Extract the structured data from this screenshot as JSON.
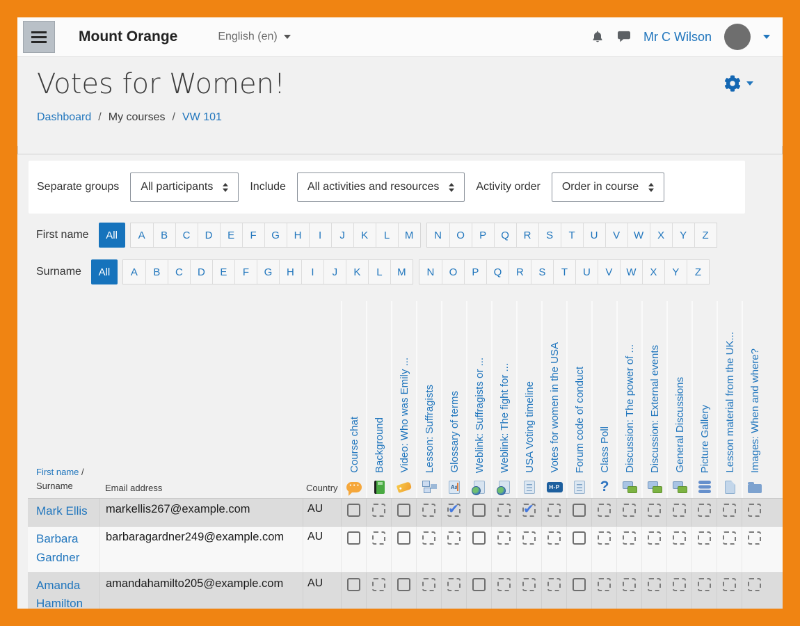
{
  "colors": {
    "frame_orange": "#f08412",
    "accent_blue": "#2176bd",
    "selected_filter_bg": "#1673bc",
    "checked_blue": "#4579de"
  },
  "navbar": {
    "brand": "Mount Orange",
    "language": "English (en)",
    "user_name": "Mr C Wilson"
  },
  "header": {
    "title": "Votes for Women!",
    "separator": "/",
    "breadcrumb": [
      {
        "label": "Dashboard"
      },
      {
        "label": "My courses"
      },
      {
        "label": "VW 101"
      }
    ]
  },
  "filters": {
    "groups_label": "Separate groups",
    "groups_value": "All participants",
    "include_label": "Include",
    "include_value": "All activities and resources",
    "order_label": "Activity order",
    "order_value": "Order in course"
  },
  "letter_filters": {
    "first_name_label": "First name",
    "surname_label": "Surname",
    "all_label": "All",
    "letters_group1": [
      "A",
      "B",
      "C",
      "D",
      "E",
      "F",
      "G",
      "H",
      "I",
      "J",
      "K",
      "L",
      "M"
    ],
    "letters_group2": [
      "N",
      "O",
      "P",
      "Q",
      "R",
      "S",
      "T",
      "U",
      "V",
      "W",
      "X",
      "Y",
      "Z"
    ]
  },
  "table": {
    "first_name_sort_label": "First name",
    "name_header_sep": " / ",
    "surname_sort_label": "Surname",
    "email_header": "Email address",
    "country_header": "Country",
    "activities": [
      {
        "label": "Course chat",
        "icon": "chat"
      },
      {
        "label": "Background",
        "icon": "book"
      },
      {
        "label": "Video: Who was Emily ...",
        "icon": "tag"
      },
      {
        "label": "Lesson: Suffragists",
        "icon": "lesson"
      },
      {
        "label": "Glossary of terms",
        "icon": "glossary"
      },
      {
        "label": "Weblink: Suffragists or ...",
        "icon": "weblink"
      },
      {
        "label": "Weblink: The fight for ...",
        "icon": "weblink"
      },
      {
        "label": "USA Voting timeline",
        "icon": "page"
      },
      {
        "label": "Votes for women in the USA",
        "icon": "h5p"
      },
      {
        "label": "Forum code of conduct",
        "icon": "page"
      },
      {
        "label": "Class Poll",
        "icon": "question"
      },
      {
        "label": "Discussion: The power of ...",
        "icon": "forum"
      },
      {
        "label": "Discussion: External events",
        "icon": "forum"
      },
      {
        "label": "General Discussions",
        "icon": "forum"
      },
      {
        "label": "Picture Gallery",
        "icon": "database"
      },
      {
        "label": "Lesson material from the UK...",
        "icon": "file"
      },
      {
        "label": "Images: When and where?",
        "icon": "folder"
      }
    ],
    "checkbox_styles": [
      "solid",
      "dashed",
      "solid",
      "dashed",
      "dashed",
      "solid",
      "dashed",
      "dashed",
      "dashed",
      "solid",
      "dashed",
      "dashed",
      "dashed",
      "dashed",
      "dashed",
      "dashed",
      "dashed"
    ],
    "rows": [
      {
        "name": "Mark Ellis",
        "email": "markellis267@example.com",
        "country": "AU",
        "checks": [
          false,
          false,
          false,
          false,
          true,
          false,
          false,
          true,
          false,
          false,
          false,
          false,
          false,
          false,
          false,
          false,
          false
        ]
      },
      {
        "name": "Barbara Gardner",
        "email": "barbaragardner249@example.com",
        "country": "AU",
        "checks": [
          false,
          false,
          false,
          false,
          false,
          false,
          false,
          false,
          false,
          false,
          false,
          false,
          false,
          false,
          false,
          false,
          false
        ]
      },
      {
        "name": "Amanda Hamilton",
        "email": "amandahamilto205@example.com",
        "country": "AU",
        "checks": [
          false,
          false,
          false,
          false,
          false,
          false,
          false,
          false,
          false,
          false,
          false,
          false,
          false,
          false,
          false,
          false,
          false
        ]
      }
    ]
  }
}
